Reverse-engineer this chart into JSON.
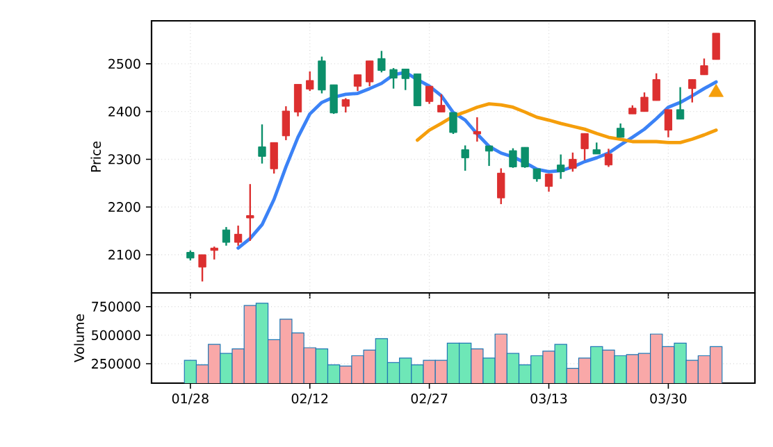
{
  "chart_data": [
    {
      "type": "candlestick",
      "ylabel": "Price",
      "grid": true,
      "tick_labels": "y",
      "categories": [
        null,
        null,
        null,
        null,
        null,
        null,
        null,
        null,
        null,
        null,
        null,
        null,
        null,
        null,
        null,
        null,
        null,
        null,
        null,
        null,
        null,
        null,
        null,
        null,
        null,
        null,
        null,
        null,
        null,
        null,
        null,
        null,
        null,
        null,
        null,
        null,
        null,
        null,
        null,
        null,
        null,
        null,
        null,
        null,
        null
      ],
      "ylim": [
        2020,
        2590
      ],
      "yticks": [
        2100,
        2200,
        2300,
        2400,
        2500
      ],
      "ohlc": [
        [
          2105,
          2109,
          2088,
          2093
        ],
        [
          2074,
          2100,
          2044,
          2100
        ],
        [
          2109,
          2117,
          2090,
          2114
        ],
        [
          2152,
          2158,
          2119,
          2126
        ],
        [
          2126,
          2161,
          2119,
          2143
        ],
        [
          2177,
          2248,
          2129,
          2182
        ],
        [
          2326,
          2373,
          2291,
          2306
        ],
        [
          2280,
          2335,
          2270,
          2335
        ],
        [
          2349,
          2411,
          2340,
          2401
        ],
        [
          2399,
          2457,
          2390,
          2457
        ],
        [
          2447,
          2484,
          2443,
          2465
        ],
        [
          2506,
          2515,
          2438,
          2445
        ],
        [
          2456,
          2456,
          2395,
          2397
        ],
        [
          2411,
          2428,
          2398,
          2425
        ],
        [
          2453,
          2477,
          2443,
          2477
        ],
        [
          2462,
          2506,
          2453,
          2506
        ],
        [
          2511,
          2527,
          2482,
          2486
        ],
        [
          2488,
          2491,
          2448,
          2470
        ],
        [
          2489,
          2489,
          2445,
          2469
        ],
        [
          2479,
          2479,
          2412,
          2412
        ],
        [
          2421,
          2453,
          2416,
          2453
        ],
        [
          2399,
          2436,
          2399,
          2413
        ],
        [
          2398,
          2398,
          2353,
          2356
        ],
        [
          2320,
          2329,
          2276,
          2303
        ],
        [
          2353,
          2388,
          2337,
          2358
        ],
        [
          2328,
          2328,
          2286,
          2317
        ],
        [
          2219,
          2281,
          2206,
          2271
        ],
        [
          2318,
          2323,
          2282,
          2284
        ],
        [
          2325,
          2325,
          2282,
          2284
        ],
        [
          2280,
          2280,
          2253,
          2259
        ],
        [
          2243,
          2269,
          2232,
          2269
        ],
        [
          2288,
          2310,
          2259,
          2274
        ],
        [
          2281,
          2314,
          2274,
          2300
        ],
        [
          2322,
          2354,
          2298,
          2354
        ],
        [
          2320,
          2335,
          2311,
          2311
        ],
        [
          2288,
          2322,
          2284,
          2311
        ],
        [
          2365,
          2375,
          2346,
          2346
        ],
        [
          2395,
          2413,
          2395,
          2407
        ],
        [
          2400,
          2440,
          2400,
          2430
        ],
        [
          2423,
          2480,
          2423,
          2467
        ],
        [
          2361,
          2404,
          2346,
          2404
        ],
        [
          2404,
          2451,
          2384,
          2384
        ],
        [
          2448,
          2467,
          2419,
          2467
        ],
        [
          2477,
          2511,
          2477,
          2496
        ],
        [
          2509,
          2564,
          2509,
          2564
        ]
      ],
      "colors": [
        "#0b8f6a",
        "#dc2f2f",
        "#dc2f2f",
        "#0b8f6a",
        "#dc2f2f",
        "#dc2f2f",
        "#0b8f6a",
        "#dc2f2f",
        "#dc2f2f",
        "#dc2f2f",
        "#dc2f2f",
        "#0b8f6a",
        "#0b8f6a",
        "#dc2f2f",
        "#dc2f2f",
        "#dc2f2f",
        "#0b8f6a",
        "#0b8f6a",
        "#0b8f6a",
        "#0b8f6a",
        "#dc2f2f",
        "#dc2f2f",
        "#0b8f6a",
        "#0b8f6a",
        "#dc2f2f",
        "#0b8f6a",
        "#dc2f2f",
        "#0b8f6a",
        "#0b8f6a",
        "#0b8f6a",
        "#dc2f2f",
        "#0b8f6a",
        "#dc2f2f",
        "#dc2f2f",
        "#0b8f6a",
        "#dc2f2f",
        "#0b8f6a",
        "#dc2f2f",
        "#dc2f2f",
        "#dc2f2f",
        "#dc2f2f",
        "#0b8f6a",
        "#dc2f2f",
        "#dc2f2f",
        "#dc2f2f"
      ],
      "series": [
        {
          "type": "line",
          "color": "#3b82f6",
          "values": [
            null,
            null,
            null,
            null,
            2114,
            2134,
            2163,
            2216,
            2284,
            2346,
            2395,
            2419,
            2430,
            2436,
            2438,
            2448,
            2459,
            2477,
            2482,
            2467,
            2453,
            2433,
            2398,
            2382,
            2353,
            2327,
            2313,
            2305,
            2293,
            2279,
            2274,
            2276,
            2284,
            2295,
            2303,
            2313,
            2330,
            2346,
            2363,
            2385,
            2409,
            2419,
            2433,
            2448,
            2462
          ]
        },
        {
          "type": "line",
          "color": "#f59e0b",
          "values": [
            null,
            null,
            null,
            null,
            null,
            null,
            null,
            null,
            null,
            null,
            null,
            null,
            null,
            null,
            null,
            null,
            null,
            null,
            null,
            2340,
            2361,
            2375,
            2390,
            2399,
            2409,
            2416,
            2414,
            2409,
            2399,
            2388,
            2382,
            2375,
            2369,
            2363,
            2354,
            2346,
            2342,
            2337,
            2337,
            2337,
            2335,
            2335,
            2342,
            2351,
            2361
          ]
        },
        {
          "type": "scatter",
          "marker": "triangle",
          "color": "#f59e0b",
          "values": [
            null,
            null,
            null,
            null,
            null,
            null,
            null,
            null,
            null,
            null,
            null,
            null,
            null,
            null,
            null,
            null,
            null,
            null,
            null,
            null,
            null,
            null,
            null,
            null,
            null,
            null,
            null,
            null,
            null,
            null,
            null,
            null,
            null,
            null,
            null,
            null,
            null,
            null,
            null,
            null,
            null,
            null,
            null,
            null,
            2440
          ]
        }
      ]
    },
    {
      "type": "bar",
      "ylabel": "Volume",
      "grid": true,
      "categories": [
        "01/28",
        null,
        null,
        null,
        null,
        null,
        null,
        null,
        null,
        null,
        "02/12",
        null,
        null,
        null,
        null,
        null,
        null,
        null,
        null,
        null,
        "02/27",
        null,
        null,
        null,
        null,
        null,
        null,
        null,
        null,
        null,
        "03/13",
        null,
        null,
        null,
        null,
        null,
        null,
        null,
        null,
        null,
        "03/30",
        null,
        null,
        null,
        null
      ],
      "ylim": [
        80000,
        870000
      ],
      "yticks": [
        250000,
        500000,
        750000
      ],
      "values": [
        280000,
        240000,
        420000,
        340000,
        380000,
        760000,
        780000,
        460000,
        640000,
        520000,
        390000,
        380000,
        240000,
        230000,
        320000,
        370000,
        470000,
        260000,
        300000,
        240000,
        280000,
        280000,
        430000,
        430000,
        380000,
        300000,
        510000,
        340000,
        240000,
        320000,
        360000,
        420000,
        210000,
        300000,
        400000,
        370000,
        320000,
        330000,
        340000,
        510000,
        400000,
        430000,
        280000,
        320000,
        400000
      ],
      "colors": [
        "#6ee7b7",
        "#f9a8a8",
        "#f9a8a8",
        "#6ee7b7",
        "#f9a8a8",
        "#f9a8a8",
        "#6ee7b7",
        "#f9a8a8",
        "#f9a8a8",
        "#f9a8a8",
        "#f9a8a8",
        "#6ee7b7",
        "#6ee7b7",
        "#f9a8a8",
        "#f9a8a8",
        "#f9a8a8",
        "#6ee7b7",
        "#6ee7b7",
        "#6ee7b7",
        "#6ee7b7",
        "#f9a8a8",
        "#f9a8a8",
        "#6ee7b7",
        "#6ee7b7",
        "#f9a8a8",
        "#6ee7b7",
        "#f9a8a8",
        "#6ee7b7",
        "#6ee7b7",
        "#6ee7b7",
        "#f9a8a8",
        "#6ee7b7",
        "#f9a8a8",
        "#f9a8a8",
        "#6ee7b7",
        "#f9a8a8",
        "#6ee7b7",
        "#f9a8a8",
        "#f9a8a8",
        "#f9a8a8",
        "#f9a8a8",
        "#6ee7b7",
        "#f9a8a8",
        "#f9a8a8",
        "#f9a8a8"
      ]
    }
  ]
}
